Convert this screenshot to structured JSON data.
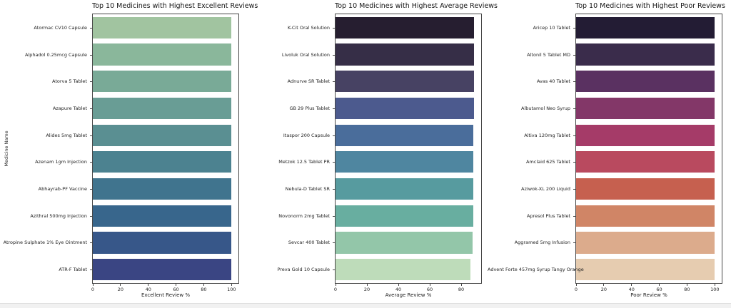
{
  "page": {
    "background": "#ffffff",
    "bottom_strip_color": "#f1f1f1"
  },
  "chart_data": [
    {
      "type": "bar",
      "orientation": "horizontal",
      "title": "Top 10 Medicines with Highest Excellent Reviews",
      "xlabel": "Excellent Review %",
      "ylabel": "Medicine Name",
      "categories": [
        "Atormac CV10 Capsule",
        "Alphadol 0.25mcg Capsule",
        "Atorva 5 Tablet",
        "Azapure Tablet",
        "Alides 5mg Tablet",
        "Azenam 1gm Injection",
        "Abhayrab-PF Vaccine",
        "Azithral 500mg Injection",
        "Atropine Sulphate 1% Eye Ointment",
        "ATR-F Tablet"
      ],
      "values": [
        100,
        100,
        100,
        100,
        100,
        100,
        100,
        100,
        100,
        100
      ],
      "xlim": [
        0,
        105
      ],
      "xticks": [
        0,
        20,
        40,
        60,
        80,
        100
      ],
      "grid": false,
      "bar_colors": [
        "#a1c4a0",
        "#8ab79b",
        "#79aa97",
        "#699d95",
        "#5a8f92",
        "#4c8290",
        "#40748e",
        "#38668c",
        "#375789",
        "#3a4583"
      ]
    },
    {
      "type": "bar",
      "orientation": "horizontal",
      "title": "Top 10 Medicines with Highest Average Reviews",
      "xlabel": "Average Review %",
      "ylabel": "",
      "categories": [
        "K-Cit Oral Solution",
        "Livoluk Oral Solution",
        "Adnurve SR Tablet",
        "GB 29 Plus Tablet",
        "Itaspor 200 Capsule",
        "Metzok 12.5 Tablet PR",
        "Nebula-D Tablet SR",
        "Novonorm 2mg Tablet",
        "Sevcar 400 Tablet",
        "Preva Gold 10 Capsule"
      ],
      "values": [
        88.3,
        88.2,
        88.1,
        88.0,
        87.9,
        87.9,
        87.8,
        87.7,
        87.4,
        85.8
      ],
      "xlim": [
        0,
        92.7
      ],
      "xticks": [
        0,
        20,
        40,
        60,
        80
      ],
      "grid": false,
      "bar_colors": [
        "#261e30",
        "#362e47",
        "#474263",
        "#4c5a8e",
        "#4a6d9b",
        "#4f86a0",
        "#579b9f",
        "#68aea0",
        "#93c6a9",
        "#bedcba"
      ]
    },
    {
      "type": "bar",
      "orientation": "horizontal",
      "title": "Top 10 Medicines with Highest Poor Reviews",
      "xlabel": "Poor Review %",
      "ylabel": "",
      "categories": [
        "Aricep 10 Tablet",
        "Altonil 5 Tablet MD",
        "Avas 40 Tablet",
        "Albutamol Neo Syrup",
        "Altiva 120mg Tablet",
        "Amclaid 625 Tablet",
        "Aziwok-XL 200 Liquid",
        "Apresol Plus Tablet",
        "Aggramed 5mg Infusion",
        "Advent Forte 457mg Syrup Tangy Orange"
      ],
      "values": [
        100,
        100,
        100,
        100,
        100,
        100,
        100,
        100,
        100,
        100
      ],
      "xlim": [
        0,
        105
      ],
      "xticks": [
        0,
        20,
        40,
        60,
        80,
        100
      ],
      "grid": false,
      "bar_colors": [
        "#231c34",
        "#3a2c4b",
        "#5a3161",
        "#833768",
        "#a53b68",
        "#b94a5f",
        "#c6604f",
        "#d08566",
        "#dcab8c",
        "#e6ccb0"
      ]
    }
  ]
}
